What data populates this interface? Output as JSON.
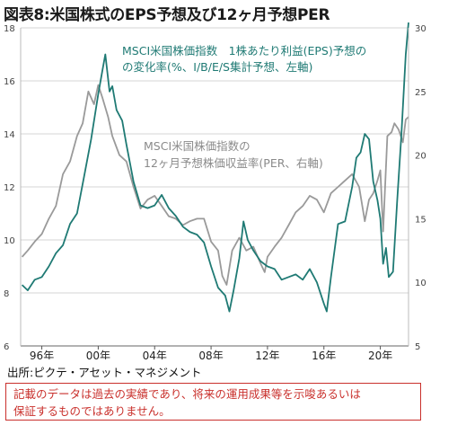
{
  "figure": {
    "title": "図表8:米国株式のEPS予想及び12ヶ月予想PER",
    "source": "出所:ピクテ・アセット・マネジメント",
    "disclaimer_line1": "記載のデータは過去の実績であり、将来の運用成果等を示唆あるいは",
    "disclaimer_line2": "保証するものではありません。"
  },
  "chart_data": {
    "type": "line",
    "title": "図表8:米国株式のEPS予想及び12ヶ月予想PER",
    "x_tick_labels": [
      "96年",
      "00年",
      "04年",
      "08年",
      "12年",
      "16年",
      "20年"
    ],
    "x_tick_years": [
      1996,
      2000,
      2004,
      2008,
      2012,
      2016,
      2020
    ],
    "x_range": [
      1994.5,
      2022.0
    ],
    "left_axis": {
      "range": [
        6,
        18
      ],
      "ticks": [
        "6",
        "8",
        "10",
        "12",
        "14",
        "16",
        "18"
      ]
    },
    "right_axis": {
      "range": [
        5,
        30
      ],
      "ticks": [
        "5",
        "10",
        "15",
        "20",
        "25",
        "30"
      ]
    },
    "grid": "horizontal",
    "series": [
      {
        "name": "MSCI米国株価指数 1株あたり利益(EPS)予想の変化率(%、I/B/E/S集計予想、左軸)",
        "label_line1": "MSCI米国株価指数　1株あたり利益(EPS)予想の",
        "label_line2": "の変化率(%、I/B/E/S集計予想、左軸)",
        "axis": "left",
        "color": "#1f7a74",
        "points": [
          [
            1994.6,
            8.3
          ],
          [
            1995.0,
            8.1
          ],
          [
            1995.5,
            8.5
          ],
          [
            1996.0,
            8.6
          ],
          [
            1996.5,
            9.0
          ],
          [
            1997.0,
            9.5
          ],
          [
            1997.5,
            9.8
          ],
          [
            1998.0,
            10.6
          ],
          [
            1998.5,
            11.0
          ],
          [
            1999.0,
            12.4
          ],
          [
            1999.5,
            13.8
          ],
          [
            2000.0,
            15.5
          ],
          [
            2000.3,
            16.4
          ],
          [
            2000.5,
            17.0
          ],
          [
            2000.8,
            15.6
          ],
          [
            2001.0,
            15.8
          ],
          [
            2001.3,
            14.9
          ],
          [
            2001.7,
            14.5
          ],
          [
            2002.0,
            13.6
          ],
          [
            2002.5,
            12.2
          ],
          [
            2003.0,
            11.3
          ],
          [
            2003.5,
            11.2
          ],
          [
            2004.0,
            11.3
          ],
          [
            2004.5,
            11.7
          ],
          [
            2005.0,
            11.2
          ],
          [
            2005.5,
            10.9
          ],
          [
            2006.0,
            10.5
          ],
          [
            2006.5,
            10.3
          ],
          [
            2007.0,
            10.2
          ],
          [
            2007.5,
            9.9
          ],
          [
            2008.0,
            9.0
          ],
          [
            2008.5,
            8.2
          ],
          [
            2009.0,
            7.9
          ],
          [
            2009.3,
            7.3
          ],
          [
            2009.6,
            8.1
          ],
          [
            2010.0,
            9.3
          ],
          [
            2010.3,
            10.7
          ],
          [
            2010.6,
            10.0
          ],
          [
            2011.0,
            9.6
          ],
          [
            2011.5,
            9.2
          ],
          [
            2012.0,
            9.0
          ],
          [
            2012.5,
            8.9
          ],
          [
            2013.0,
            8.5
          ],
          [
            2013.5,
            8.6
          ],
          [
            2014.0,
            8.7
          ],
          [
            2014.5,
            8.5
          ],
          [
            2015.0,
            8.9
          ],
          [
            2015.5,
            8.4
          ],
          [
            2016.0,
            7.6
          ],
          [
            2016.2,
            7.3
          ],
          [
            2016.5,
            8.6
          ],
          [
            2017.0,
            10.6
          ],
          [
            2017.5,
            10.7
          ],
          [
            2018.0,
            12.0
          ],
          [
            2018.3,
            13.1
          ],
          [
            2018.6,
            13.3
          ],
          [
            2018.9,
            14.0
          ],
          [
            2019.2,
            13.8
          ],
          [
            2019.5,
            12.2
          ],
          [
            2019.8,
            11.5
          ],
          [
            2020.0,
            10.8
          ],
          [
            2020.2,
            9.1
          ],
          [
            2020.4,
            9.7
          ],
          [
            2020.6,
            8.6
          ],
          [
            2020.9,
            8.8
          ],
          [
            2021.2,
            11.5
          ],
          [
            2021.5,
            14.0
          ],
          [
            2021.8,
            17.0
          ],
          [
            2022.0,
            18.2
          ]
        ]
      },
      {
        "name": "MSCI米国株価指数の12ヶ月予想株価収益率(PER、右軸)",
        "label_line1": "MSCI米国株価指数の",
        "label_line2": "12ヶ月予想株価収益率(PER、右軸)",
        "axis": "right",
        "color": "#9a9a9a",
        "points": [
          [
            1994.6,
            12.0
          ],
          [
            1995.0,
            12.5
          ],
          [
            1995.5,
            13.2
          ],
          [
            1996.0,
            13.8
          ],
          [
            1996.5,
            15.0
          ],
          [
            1997.0,
            16.0
          ],
          [
            1997.5,
            18.5
          ],
          [
            1998.0,
            19.5
          ],
          [
            1998.5,
            21.5
          ],
          [
            1998.9,
            22.5
          ],
          [
            1999.3,
            25.0
          ],
          [
            1999.7,
            24.0
          ],
          [
            2000.0,
            25.5
          ],
          [
            2000.3,
            24.5
          ],
          [
            2000.7,
            23.0
          ],
          [
            2001.0,
            21.5
          ],
          [
            2001.5,
            20.0
          ],
          [
            2002.0,
            19.5
          ],
          [
            2002.5,
            17.5
          ],
          [
            2003.0,
            15.8
          ],
          [
            2003.5,
            16.5
          ],
          [
            2004.0,
            16.8
          ],
          [
            2004.5,
            16.0
          ],
          [
            2005.0,
            15.2
          ],
          [
            2005.5,
            15.0
          ],
          [
            2006.0,
            14.5
          ],
          [
            2006.5,
            14.8
          ],
          [
            2007.0,
            15.0
          ],
          [
            2007.5,
            15.0
          ],
          [
            2008.0,
            13.2
          ],
          [
            2008.5,
            12.5
          ],
          [
            2008.8,
            10.5
          ],
          [
            2009.1,
            9.8
          ],
          [
            2009.5,
            12.5
          ],
          [
            2010.0,
            13.5
          ],
          [
            2010.5,
            12.5
          ],
          [
            2011.0,
            12.8
          ],
          [
            2011.5,
            11.5
          ],
          [
            2011.8,
            10.8
          ],
          [
            2012.0,
            12.0
          ],
          [
            2012.5,
            12.8
          ],
          [
            2013.0,
            13.5
          ],
          [
            2013.5,
            14.5
          ],
          [
            2014.0,
            15.5
          ],
          [
            2014.5,
            16.0
          ],
          [
            2015.0,
            16.8
          ],
          [
            2015.5,
            16.5
          ],
          [
            2016.0,
            15.5
          ],
          [
            2016.5,
            17.0
          ],
          [
            2017.0,
            17.5
          ],
          [
            2017.5,
            18.0
          ],
          [
            2018.0,
            18.5
          ],
          [
            2018.5,
            17.5
          ],
          [
            2018.9,
            14.8
          ],
          [
            2019.2,
            16.5
          ],
          [
            2019.5,
            17.0
          ],
          [
            2019.8,
            18.0
          ],
          [
            2020.0,
            18.8
          ],
          [
            2020.2,
            14.0
          ],
          [
            2020.5,
            21.5
          ],
          [
            2020.8,
            21.8
          ],
          [
            2021.0,
            22.5
          ],
          [
            2021.3,
            22.0
          ],
          [
            2021.6,
            21.0
          ],
          [
            2021.8,
            22.8
          ],
          [
            2022.0,
            23.0
          ]
        ]
      }
    ]
  }
}
